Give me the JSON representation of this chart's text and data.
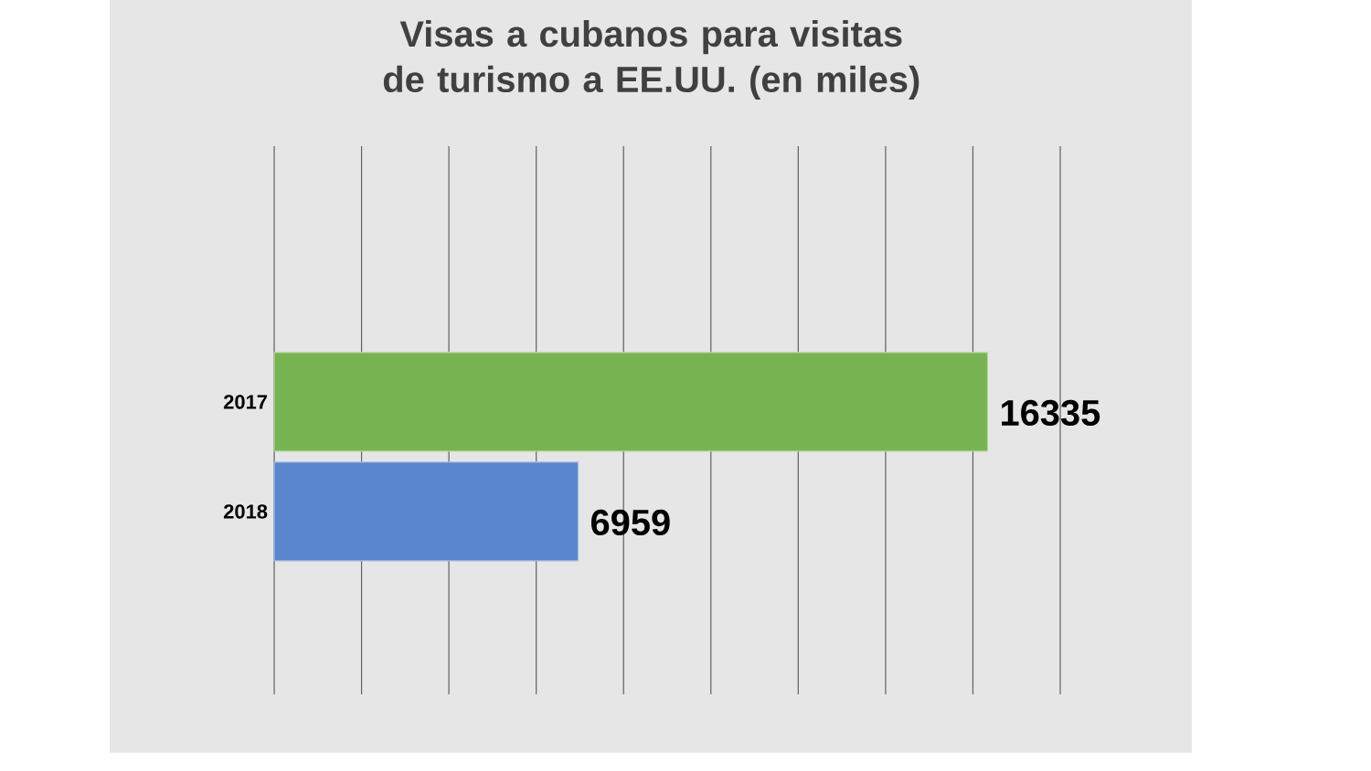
{
  "chart_data": {
    "type": "bar",
    "orientation": "horizontal",
    "title": "Visas a cubanos para visitas de turismo a EE.UU. (en miles)",
    "categories": [
      "2017",
      "2018"
    ],
    "values": [
      16335,
      6959
    ],
    "colors": [
      "#78b352",
      "#5a86d0"
    ],
    "data_labels": true,
    "xlim": [
      0,
      18000
    ],
    "xticks": [
      {
        "value": 0,
        "label": null
      },
      {
        "value": 2000,
        "label": null
      },
      {
        "value": 4000,
        "label": null
      },
      {
        "value": 6000,
        "label": null
      },
      {
        "value": 8000,
        "label": null
      },
      {
        "value": 10000,
        "label": null
      },
      {
        "value": 12000,
        "label": null
      },
      {
        "value": 14000,
        "label": null
      },
      {
        "value": 16000,
        "label": null
      },
      {
        "value": 18000,
        "label": null
      }
    ],
    "grid": "x",
    "tick_labels": "y"
  }
}
